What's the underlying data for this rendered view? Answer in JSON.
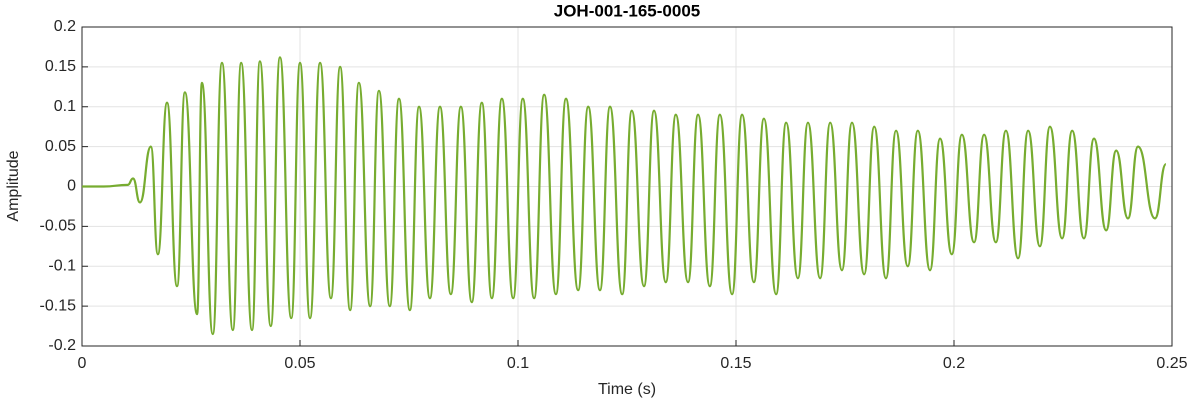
{
  "chart_data": {
    "type": "line",
    "title": "JOH-001-165-0005",
    "xlabel": "Time (s)",
    "ylabel": "Amplitude",
    "color": "#77ac30",
    "grid": true,
    "xlim": [
      0,
      0.25
    ],
    "xticks": [
      0,
      0.05,
      0.1,
      0.15,
      0.2,
      0.25
    ],
    "ylim": [
      -0.2,
      0.2
    ],
    "yticks": [
      -0.2,
      -0.15,
      -0.1,
      -0.05,
      0,
      0.05,
      0.1,
      0.15,
      0.2
    ],
    "x": [
      0,
      0.005,
      0.0105,
      0.0117,
      0.0133,
      0.0158,
      0.0174,
      0.0195,
      0.0218,
      0.0236,
      0.0264,
      0.0275,
      0.03,
      0.0321,
      0.0346,
      0.0365,
      0.039,
      0.0408,
      0.0433,
      0.0454,
      0.048,
      0.05,
      0.0523,
      0.0546,
      0.0571,
      0.0592,
      0.0615,
      0.0635,
      0.0661,
      0.0681,
      0.0706,
      0.0727,
      0.0752,
      0.0773,
      0.0798,
      0.0821,
      0.0846,
      0.0869,
      0.0894,
      0.0917,
      0.094,
      0.0963,
      0.0989,
      0.1011,
      0.1037,
      0.106,
      0.1087,
      0.111,
      0.1138,
      0.1161,
      0.1188,
      0.1211,
      0.1239,
      0.1261,
      0.1289,
      0.1312,
      0.1339,
      0.1362,
      0.139,
      0.1413,
      0.144,
      0.1463,
      0.1491,
      0.1514,
      0.1541,
      0.1564,
      0.1592,
      0.1615,
      0.1642,
      0.1665,
      0.1693,
      0.1716,
      0.1743,
      0.1766,
      0.1794,
      0.1817,
      0.1844,
      0.1867,
      0.1894,
      0.1917,
      0.1945,
      0.1968,
      0.1995,
      0.2018,
      0.2046,
      0.2069,
      0.2096,
      0.2119,
      0.2147,
      0.217,
      0.2197,
      0.222,
      0.2248,
      0.2271,
      0.2298,
      0.2321,
      0.2349,
      0.2372,
      0.2399,
      0.2422,
      0.2461,
      0.2486
    ],
    "values": [
      0,
      0,
      0.002,
      0.01,
      -0.02,
      0.05,
      -0.085,
      0.105,
      -0.125,
      0.118,
      -0.16,
      0.13,
      -0.185,
      0.155,
      -0.18,
      0.155,
      -0.18,
      0.157,
      -0.175,
      0.162,
      -0.165,
      0.155,
      -0.165,
      0.155,
      -0.14,
      0.15,
      -0.155,
      0.13,
      -0.15,
      0.12,
      -0.15,
      0.11,
      -0.155,
      0.1,
      -0.14,
      0.1,
      -0.135,
      0.1,
      -0.145,
      0.105,
      -0.14,
      0.11,
      -0.14,
      0.11,
      -0.14,
      0.115,
      -0.135,
      0.11,
      -0.13,
      0.1,
      -0.13,
      0.1,
      -0.135,
      0.095,
      -0.125,
      0.095,
      -0.12,
      0.09,
      -0.12,
      0.09,
      -0.125,
      0.09,
      -0.135,
      0.09,
      -0.12,
      0.085,
      -0.135,
      0.08,
      -0.115,
      0.08,
      -0.115,
      0.08,
      -0.105,
      0.08,
      -0.11,
      0.075,
      -0.115,
      0.07,
      -0.1,
      0.07,
      -0.105,
      0.06,
      -0.085,
      0.065,
      -0.07,
      0.065,
      -0.07,
      0.07,
      -0.09,
      0.07,
      -0.075,
      0.075,
      -0.065,
      0.07,
      -0.065,
      0.06,
      -0.055,
      0.045,
      -0.04,
      0.05,
      -0.04,
      0.028
    ]
  }
}
